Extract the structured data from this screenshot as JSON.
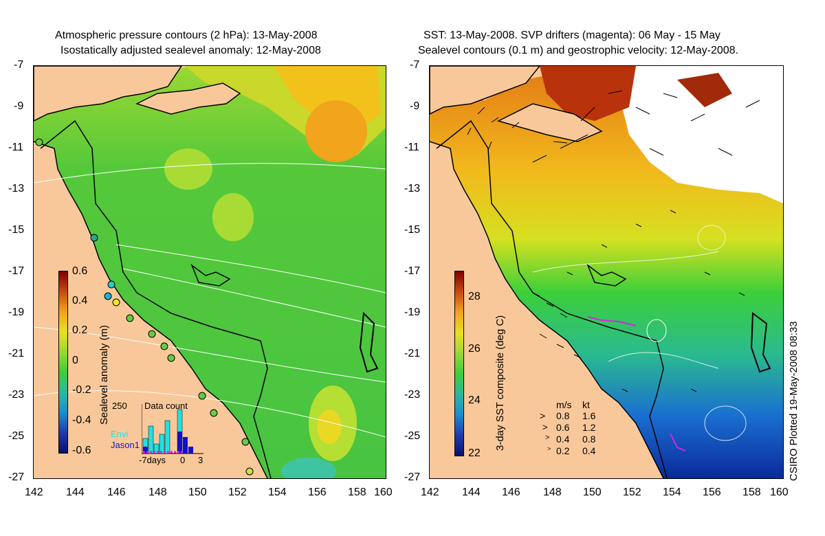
{
  "left_panel": {
    "title_line1": "Atmospheric pressure contours (2 hPa): 13-May-2008",
    "title_line2": "Isostatically adjusted sealevel anomaly: 12-May-2008",
    "colorbar": {
      "label": "Sealevel anomaly (m)",
      "ticks": [
        "0.6",
        "0.4",
        "0.2",
        "0",
        "-0.2",
        "-0.4",
        "-0.6"
      ]
    },
    "inset": {
      "title": "Data count",
      "y_tick": "250",
      "series": [
        {
          "name": "Envi",
          "color": "#22e0e0"
        },
        {
          "name": "Jason1",
          "color": "#1010cc"
        }
      ],
      "x_labels": [
        "-7days",
        "0",
        "3"
      ]
    }
  },
  "right_panel": {
    "title_line1": "SST: 13-May-2008. SVP drifters (magenta): 06 May - 15 May",
    "title_line2": "Sealevel contours (0.1 m) and geostrophic velocity: 12-May-2008.",
    "colorbar": {
      "label": "3-day SST composite (deg C)",
      "ticks": [
        "28",
        "26",
        "24",
        "22"
      ]
    },
    "velocity_legend": {
      "header_ms": "m/s",
      "header_kt": "kt",
      "rows": [
        {
          "ms": "0.8",
          "kt": "1.6"
        },
        {
          "ms": "0.6",
          "kt": "1.2"
        },
        {
          "ms": "0.4",
          "kt": "0.8"
        },
        {
          "ms": "0.2",
          "kt": "0.4"
        }
      ]
    },
    "stamp": "CSIRO Plotted 19-May-2008 08:33"
  },
  "axes": {
    "lat_ticks": [
      "-7",
      "-9",
      "-11",
      "-13",
      "-15",
      "-17",
      "-19",
      "-21",
      "-23",
      "-25",
      "-27"
    ],
    "lon_ticks": [
      "142",
      "144",
      "146",
      "148",
      "150",
      "152",
      "154",
      "156",
      "158",
      "160"
    ]
  },
  "colors": {
    "land": "#f9c89a",
    "sea_green": "#4dcf3a",
    "warm": "#f2a41c",
    "hot": "#c2410c",
    "cool": "#1565c0",
    "drifter": "#e020e0"
  }
}
